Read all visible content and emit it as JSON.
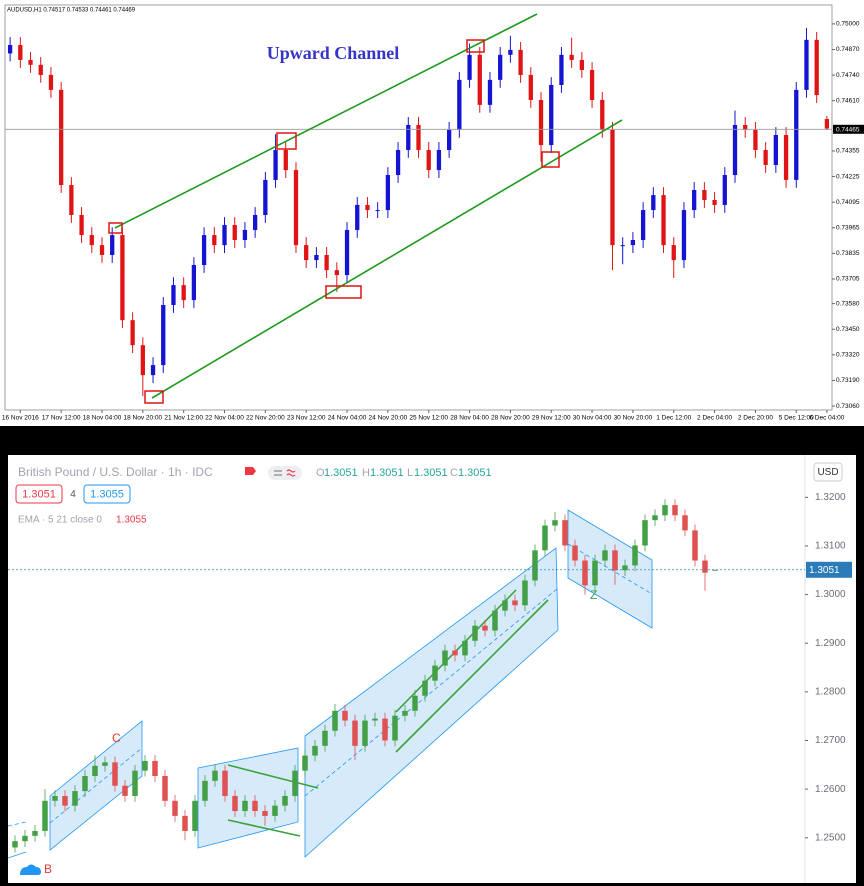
{
  "chart_data": [
    {
      "type": "candlestick",
      "title": "Upward Channel",
      "info": "AUDUSD,H1 0.74517 0.74533 0.74461 0.74469",
      "up_color": "#1414d2",
      "down_color": "#e01414",
      "ylim": [
        0.7304,
        0.75096
      ],
      "yticks": [
        {
          "value": 0.75,
          "label": "0.75000"
        },
        {
          "value": 0.7487,
          "label": "0.74870"
        },
        {
          "value": 0.7474,
          "label": "0.74740"
        },
        {
          "value": 0.7461,
          "label": "0.74610"
        },
        0.74355,
        0.74225,
        0.74095,
        0.73965,
        0.73835,
        0.73705,
        {
          "value": 0.7358,
          "label": "0.73580"
        },
        {
          "value": 0.7345,
          "label": "0.73450"
        },
        {
          "value": 0.7332,
          "label": "0.73320"
        },
        {
          "value": 0.7319,
          "label": "0.73190"
        },
        {
          "value": 0.7306,
          "label": "0.73060"
        }
      ],
      "price_line": 0.74465,
      "categories": [
        null,
        "16 Nov 2016",
        null,
        null,
        null,
        "17 Nov 12:00",
        null,
        null,
        null,
        "18 Nov 04:00",
        null,
        null,
        null,
        "18 Nov 20:00",
        null,
        null,
        null,
        "21 Nov 12:00",
        null,
        null,
        null,
        "22 Nov 04:00",
        null,
        null,
        null,
        "22 Nov 20:00",
        null,
        null,
        null,
        "23 Nov 12:00",
        null,
        null,
        null,
        "24 Nov 04:00",
        null,
        null,
        null,
        "24 Nov 20:00",
        null,
        null,
        null,
        "25 Nov 12:00",
        null,
        null,
        null,
        "28 Nov 04:00",
        null,
        null,
        null,
        "28 Nov 20:00",
        null,
        null,
        null,
        "29 Nov 12:00",
        null,
        null,
        null,
        "30 Nov 04:00",
        null,
        null,
        null,
        "30 Nov 20:00",
        null,
        null,
        null,
        "1 Dec 12:00",
        null,
        null,
        null,
        "2 Dec 04:00",
        null,
        null,
        null,
        "2 Dec 20:00",
        null,
        null,
        null,
        "5 Dec 12:00",
        null,
        null,
        "6 Dec 04:00"
      ],
      "candles": [
        [
          0.7485,
          0.74933,
          0.7481,
          0.74893
        ],
        [
          0.74893,
          0.74933,
          0.74777,
          0.74817
        ],
        [
          0.74817,
          0.74857,
          0.74752,
          0.74792
        ],
        [
          0.74792,
          0.74832,
          0.74701,
          0.74741
        ],
        [
          0.74741,
          0.74781,
          0.74625,
          0.74665
        ],
        [
          0.74665,
          0.74705,
          0.74142,
          0.74182
        ],
        [
          0.74182,
          0.74222,
          0.7399,
          0.7403
        ],
        [
          0.7403,
          0.7407,
          0.73888,
          0.73928
        ],
        [
          0.73928,
          0.73968,
          0.73837,
          0.73877
        ],
        [
          0.73877,
          0.73917,
          0.73787,
          0.73827
        ],
        [
          0.73827,
          0.73968,
          0.73787,
          0.73928
        ],
        [
          0.73928,
          0.73968,
          0.73456,
          0.73496
        ],
        [
          0.73496,
          0.73536,
          0.73329,
          0.73369
        ],
        [
          0.73369,
          0.73409,
          0.7311,
          0.73217
        ],
        [
          0.73217,
          0.73308,
          0.73177,
          0.73268
        ],
        [
          0.73268,
          0.73613,
          0.73228,
          0.73573
        ],
        [
          0.73573,
          0.73714,
          0.73533,
          0.73674
        ],
        [
          0.73674,
          0.73714,
          0.73558,
          0.73598
        ],
        [
          0.73598,
          0.73816,
          0.73558,
          0.73776
        ],
        [
          0.73776,
          0.73968,
          0.73736,
          0.73928
        ],
        [
          0.73928,
          0.73968,
          0.73837,
          0.73877
        ],
        [
          0.73877,
          0.74019,
          0.73837,
          0.73979
        ],
        [
          0.73979,
          0.74019,
          0.73863,
          0.73903
        ],
        [
          0.73903,
          0.73994,
          0.73863,
          0.73954
        ],
        [
          0.73954,
          0.7407,
          0.73914,
          0.7403
        ],
        [
          0.7403,
          0.74248,
          0.7399,
          0.74208
        ],
        [
          0.74208,
          0.7444,
          0.74168,
          0.7436
        ],
        [
          0.7436,
          0.744,
          0.74218,
          0.74258
        ],
        [
          0.74258,
          0.74298,
          0.73837,
          0.73877
        ],
        [
          0.73877,
          0.73917,
          0.73761,
          0.73801
        ],
        [
          0.73801,
          0.73867,
          0.73761,
          0.73827
        ],
        [
          0.73827,
          0.73867,
          0.7371,
          0.7375
        ],
        [
          0.7375,
          0.7379,
          0.7364,
          0.73725
        ],
        [
          0.73725,
          0.73994,
          0.73685,
          0.73954
        ],
        [
          0.73954,
          0.74121,
          0.73914,
          0.74081
        ],
        [
          0.74081,
          0.74121,
          0.74015,
          0.74055
        ],
        [
          0.74055,
          0.74095,
          0.74015,
          0.74055
        ],
        [
          0.74055,
          0.74273,
          0.74015,
          0.74233
        ],
        [
          0.74233,
          0.744,
          0.74193,
          0.7436
        ],
        [
          0.7436,
          0.74527,
          0.7432,
          0.74487
        ],
        [
          0.74487,
          0.74527,
          0.7432,
          0.7436
        ],
        [
          0.7436,
          0.744,
          0.74218,
          0.74258
        ],
        [
          0.74258,
          0.744,
          0.74218,
          0.7436
        ],
        [
          0.7436,
          0.74502,
          0.7432,
          0.74462
        ],
        [
          0.74462,
          0.74756,
          0.74422,
          0.74716
        ],
        [
          0.74716,
          0.749,
          0.74676,
          0.74843
        ],
        [
          0.74843,
          0.74883,
          0.74549,
          0.74589
        ],
        [
          0.74589,
          0.74756,
          0.74549,
          0.74716
        ],
        [
          0.74716,
          0.74883,
          0.74676,
          0.74843
        ],
        [
          0.74843,
          0.7494,
          0.74803,
          0.74868
        ],
        [
          0.74868,
          0.74908,
          0.74701,
          0.74741
        ],
        [
          0.74741,
          0.74781,
          0.74574,
          0.74614
        ],
        [
          0.74614,
          0.74654,
          0.743,
          0.74385
        ],
        [
          0.74385,
          0.7473,
          0.74345,
          0.7469
        ],
        [
          0.7469,
          0.74883,
          0.7465,
          0.74843
        ],
        [
          0.74843,
          0.7493,
          0.74777,
          0.74817
        ],
        [
          0.74817,
          0.74857,
          0.74726,
          0.74766
        ],
        [
          0.74766,
          0.74806,
          0.74574,
          0.74614
        ],
        [
          0.74614,
          0.74654,
          0.74422,
          0.74462
        ],
        [
          0.74462,
          0.74502,
          0.7375,
          0.73877
        ],
        [
          0.73877,
          0.73917,
          0.7378,
          0.73877
        ],
        [
          0.73877,
          0.73943,
          0.73837,
          0.73903
        ],
        [
          0.73903,
          0.74095,
          0.73863,
          0.74055
        ],
        [
          0.74055,
          0.74171,
          0.74015,
          0.74131
        ],
        [
          0.74131,
          0.74171,
          0.73837,
          0.73877
        ],
        [
          0.73877,
          0.73917,
          0.7371,
          0.73801
        ],
        [
          0.73801,
          0.74095,
          0.73761,
          0.74055
        ],
        [
          0.74055,
          0.74197,
          0.74015,
          0.74157
        ],
        [
          0.74157,
          0.74197,
          0.74066,
          0.74106
        ],
        [
          0.74106,
          0.74146,
          0.74041,
          0.74081
        ],
        [
          0.74081,
          0.74273,
          0.74041,
          0.74233
        ],
        [
          0.74233,
          0.7456,
          0.74193,
          0.74487
        ],
        [
          0.74487,
          0.74527,
          0.74422,
          0.74462
        ],
        [
          0.74462,
          0.74502,
          0.7432,
          0.7436
        ],
        [
          0.7436,
          0.744,
          0.74244,
          0.74284
        ],
        [
          0.74284,
          0.74476,
          0.74244,
          0.74436
        ],
        [
          0.74436,
          0.74476,
          0.74168,
          0.74208
        ],
        [
          0.74208,
          0.74705,
          0.74168,
          0.74665
        ],
        [
          0.74665,
          0.7498,
          0.74625,
          0.74919
        ],
        [
          0.74919,
          0.74959,
          0.74599,
          0.74639
        ],
        [
          0.74517,
          0.74533,
          0.74461,
          0.74469
        ]
      ]
    },
    {
      "type": "candlestick",
      "title": "British Pound / U.S. Dollar · 1h · IDC",
      "ohlc_legend": [
        {
          "label": "O",
          "value": 1.3051
        },
        {
          "label": "H",
          "value": 1.3051
        },
        {
          "label": "L",
          "value": 1.3051
        },
        {
          "label": "C",
          "value": 1.3051
        }
      ],
      "sell": 1.3051,
      "spread": 4,
      "buy": 1.3055,
      "indicator": {
        "label": "EMA · 5 21 close 0",
        "value": 1.3055
      },
      "currency": "USD",
      "annotations": [
        "C",
        "B",
        "Z"
      ],
      "up_color": "#43a047",
      "down_color": "#e05252",
      "ylim": [
        1.2407,
        1.3287
      ],
      "yticks": [
        {
          "value": 1.32,
          "label": "1.3200"
        },
        {
          "value": 1.31,
          "label": "1.3100"
        },
        {
          "value": 1.3,
          "label": "1.3000"
        },
        {
          "value": 1.29,
          "label": "1.2900"
        },
        {
          "value": 1.28,
          "label": "1.2800"
        },
        {
          "value": 1.27,
          "label": "1.2700"
        },
        {
          "value": 1.26,
          "label": "1.2600"
        },
        {
          "value": 1.25,
          "label": "1.2500"
        }
      ],
      "price_line": 1.3051,
      "candles": [
        [
          1.248,
          1.2505,
          1.247,
          1.2493
        ],
        [
          1.2493,
          1.2516,
          1.2481,
          1.2504
        ],
        [
          1.2504,
          1.2526,
          1.2492,
          1.2514
        ],
        [
          1.2514,
          1.26,
          1.2502,
          1.2576
        ],
        [
          1.2576,
          1.2598,
          1.2564,
          1.2586
        ],
        [
          1.2586,
          1.2598,
          1.2554,
          1.2566
        ],
        [
          1.2566,
          1.2608,
          1.2554,
          1.2596
        ],
        [
          1.2596,
          1.2639,
          1.2584,
          1.2627
        ],
        [
          1.2627,
          1.267,
          1.2615,
          1.2648
        ],
        [
          1.2648,
          1.2667,
          1.2636,
          1.2655
        ],
        [
          1.2655,
          1.2667,
          1.2595,
          1.2607
        ],
        [
          1.2607,
          1.2619,
          1.2574,
          1.2586
        ],
        [
          1.2586,
          1.265,
          1.2574,
          1.2638
        ],
        [
          1.2638,
          1.267,
          1.2626,
          1.2658
        ],
        [
          1.2658,
          1.267,
          1.2615,
          1.2627
        ],
        [
          1.2627,
          1.2639,
          1.2564,
          1.2576
        ],
        [
          1.2576,
          1.2588,
          1.2533,
          1.2545
        ],
        [
          1.2545,
          1.2557,
          1.2495,
          1.2514
        ],
        [
          1.2514,
          1.2588,
          1.2502,
          1.2576
        ],
        [
          1.2576,
          1.2629,
          1.2564,
          1.2617
        ],
        [
          1.2617,
          1.265,
          1.2605,
          1.2638
        ],
        [
          1.2638,
          1.265,
          1.2574,
          1.2586
        ],
        [
          1.2586,
          1.2598,
          1.2543,
          1.2555
        ],
        [
          1.2555,
          1.2588,
          1.2543,
          1.2576
        ],
        [
          1.2576,
          1.2588,
          1.2543,
          1.2555
        ],
        [
          1.2555,
          1.2567,
          1.2525,
          1.2545
        ],
        [
          1.2545,
          1.2578,
          1.2533,
          1.2566
        ],
        [
          1.2566,
          1.2598,
          1.2554,
          1.2586
        ],
        [
          1.2586,
          1.265,
          1.2574,
          1.2638
        ],
        [
          1.2638,
          1.2681,
          1.2626,
          1.2669
        ],
        [
          1.2669,
          1.2701,
          1.2657,
          1.2689
        ],
        [
          1.2689,
          1.2732,
          1.2677,
          1.272
        ],
        [
          1.272,
          1.2775,
          1.2708,
          1.2761
        ],
        [
          1.2761,
          1.2773,
          1.2729,
          1.2741
        ],
        [
          1.2741,
          1.2753,
          1.266,
          1.2689
        ],
        [
          1.2689,
          1.2753,
          1.2677,
          1.2741
        ],
        [
          1.2741,
          1.2757,
          1.2729,
          1.2745
        ],
        [
          1.2745,
          1.2757,
          1.2688,
          1.27
        ],
        [
          1.27,
          1.2763,
          1.2688,
          1.2751
        ],
        [
          1.2751,
          1.2773,
          1.2739,
          1.2761
        ],
        [
          1.2761,
          1.2804,
          1.2749,
          1.2792
        ],
        [
          1.2792,
          1.2835,
          1.278,
          1.2823
        ],
        [
          1.2823,
          1.2866,
          1.2811,
          1.2854
        ],
        [
          1.2854,
          1.2897,
          1.2842,
          1.2885
        ],
        [
          1.2885,
          1.2897,
          1.2863,
          1.2875
        ],
        [
          1.2875,
          1.2917,
          1.2863,
          1.2905
        ],
        [
          1.2905,
          1.2948,
          1.2893,
          1.2936
        ],
        [
          1.2936,
          1.2948,
          1.2914,
          1.2926
        ],
        [
          1.2926,
          1.2979,
          1.2914,
          1.2967
        ],
        [
          1.2967,
          1.3,
          1.2955,
          1.2988
        ],
        [
          1.2988,
          1.3,
          1.2966,
          1.2978
        ],
        [
          1.2978,
          1.3041,
          1.2966,
          1.3029
        ],
        [
          1.3029,
          1.3103,
          1.3017,
          1.3091
        ],
        [
          1.3091,
          1.3154,
          1.3079,
          1.3142
        ],
        [
          1.3142,
          1.317,
          1.313,
          1.3153
        ],
        [
          1.3153,
          1.3165,
          1.3089,
          1.3101
        ],
        [
          1.3101,
          1.3113,
          1.3058,
          1.307
        ],
        [
          1.307,
          1.3082,
          1.3,
          1.3019
        ],
        [
          1.3019,
          1.3082,
          1.3007,
          1.307
        ],
        [
          1.307,
          1.3103,
          1.3058,
          1.3091
        ],
        [
          1.3091,
          1.3103,
          1.302,
          1.305
        ],
        [
          1.305,
          1.3072,
          1.3038,
          1.306
        ],
        [
          1.306,
          1.3113,
          1.3048,
          1.3101
        ],
        [
          1.3101,
          1.3165,
          1.3089,
          1.3153
        ],
        [
          1.3153,
          1.3175,
          1.3141,
          1.3163
        ],
        [
          1.3163,
          1.3196,
          1.3151,
          1.3184
        ],
        [
          1.3184,
          1.3196,
          1.3151,
          1.3163
        ],
        [
          1.3163,
          1.3175,
          1.312,
          1.3132
        ],
        [
          1.3132,
          1.3144,
          1.3058,
          1.307
        ],
        [
          1.307,
          1.3082,
          1.3008,
          1.3045
        ],
        [
          1.3051,
          1.3051,
          1.3051,
          1.3051
        ]
      ]
    }
  ]
}
